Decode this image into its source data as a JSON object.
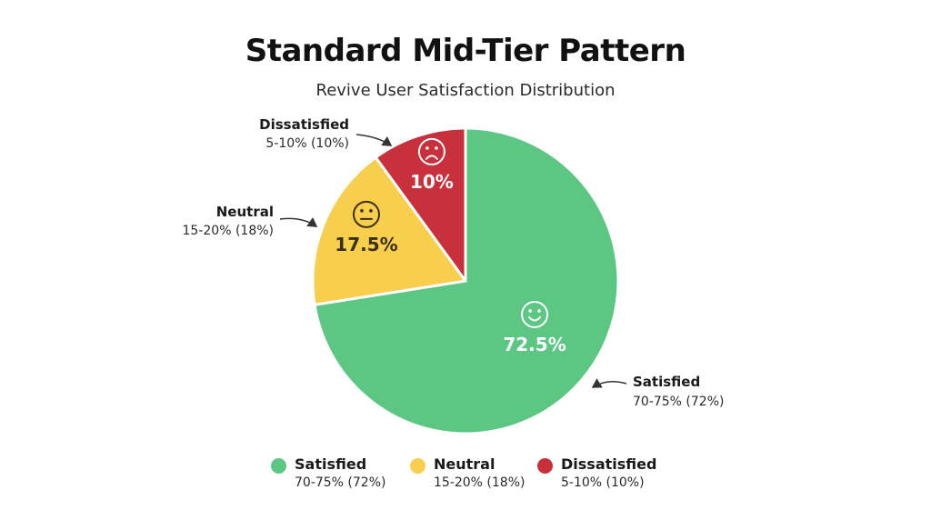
{
  "title": "Standard Mid-Tier Pattern",
  "subtitle": "Revive User Satisfaction Distribution",
  "colors": {
    "satisfied": "#5bc783",
    "neutral": "#f8ce4d",
    "dissatisfied": "#c8303c"
  },
  "chart_data": {
    "type": "pie",
    "title": "Standard Mid-Tier Pattern",
    "subtitle": "Revive User Satisfaction Distribution",
    "categories": [
      "Satisfied",
      "Neutral",
      "Dissatisfied"
    ],
    "values": [
      72.5,
      17.5,
      10
    ],
    "value_labels": [
      "72.5%",
      "17.5%",
      "10%"
    ],
    "ranges": [
      "70-75% (72%)",
      "15-20% (18%)",
      "5-10% (10%)"
    ],
    "icons": [
      "smile-face-icon",
      "neutral-face-icon",
      "frown-face-icon"
    ],
    "legend_position": "bottom"
  },
  "legend": [
    {
      "name": "Satisfied",
      "range": "70-75% (72%)",
      "color": "#5bc783"
    },
    {
      "name": "Neutral",
      "range": "15-20% (18%)",
      "color": "#f8ce4d"
    },
    {
      "name": "Dissatisfied",
      "range": "5-10% (10%)",
      "color": "#c8303c"
    }
  ]
}
